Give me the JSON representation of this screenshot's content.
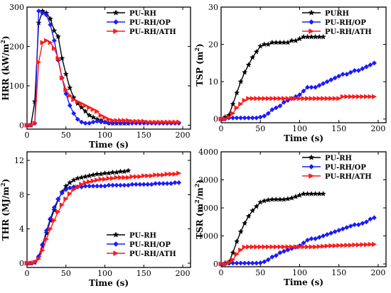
{
  "chart_data": [
    {
      "type": "line",
      "xlabel": "Time (s)",
      "ylabel": "HRR (kW/m²)",
      "ylabel_base": "HRR (kW/m",
      "ylabel_sup": "2",
      "ylabel_tail": ")",
      "xlim": [
        0,
        210
      ],
      "ylim": [
        -10,
        300
      ],
      "xticks": [
        0,
        50,
        100,
        150,
        200
      ],
      "yticks": [
        0,
        100,
        200,
        300
      ],
      "legend_position": "top-right",
      "series": [
        {
          "name": "PU-RH",
          "color": "#000000",
          "marker": "star",
          "x": [
            0,
            5,
            10,
            15,
            20,
            25,
            30,
            35,
            40,
            45,
            50,
            55,
            60,
            65,
            70,
            75,
            80,
            85,
            90,
            95,
            100,
            105,
            110,
            115,
            120,
            125,
            130
          ],
          "y": [
            0,
            0,
            60,
            260,
            290,
            285,
            270,
            240,
            225,
            170,
            130,
            95,
            70,
            55,
            45,
            35,
            25,
            20,
            15,
            12,
            8,
            6,
            5,
            5,
            5,
            5,
            5
          ]
        },
        {
          "name": "PU-RH/OP",
          "color": "#1a1aff",
          "marker": "diamond",
          "x": [
            0,
            5,
            10,
            15,
            20,
            25,
            30,
            35,
            40,
            45,
            50,
            55,
            60,
            65,
            70,
            75,
            80,
            85,
            90,
            95,
            100,
            105,
            110,
            115,
            120,
            125,
            130,
            135,
            140,
            145,
            150,
            155,
            160,
            165,
            170,
            175,
            180,
            185,
            190,
            195
          ],
          "y": [
            0,
            0,
            5,
            290,
            285,
            280,
            255,
            215,
            165,
            120,
            80,
            50,
            30,
            15,
            8,
            5,
            5,
            8,
            10,
            8,
            8,
            5,
            5,
            5,
            5,
            5,
            5,
            5,
            5,
            5,
            5,
            5,
            5,
            5,
            5,
            5,
            5,
            5,
            5,
            5
          ]
        },
        {
          "name": "PU-RH/ATH",
          "color": "#ff1a1a",
          "marker": "triangle-right",
          "x": [
            0,
            5,
            10,
            15,
            20,
            25,
            30,
            35,
            40,
            45,
            50,
            55,
            60,
            65,
            70,
            75,
            80,
            85,
            90,
            95,
            100,
            105,
            110,
            115,
            120,
            125,
            130,
            135,
            140,
            145,
            150,
            155,
            160,
            165,
            170,
            175,
            180,
            185,
            190,
            195
          ],
          "y": [
            0,
            0,
            5,
            160,
            210,
            215,
            210,
            195,
            170,
            120,
            90,
            75,
            65,
            60,
            55,
            50,
            45,
            40,
            35,
            25,
            20,
            15,
            12,
            12,
            12,
            12,
            12,
            10,
            10,
            10,
            10,
            8,
            8,
            8,
            8,
            8,
            8,
            8,
            8,
            8
          ]
        }
      ]
    },
    {
      "type": "line",
      "xlabel": "Time (s)",
      "ylabel": "TSP (m²)",
      "ylabel_base": "TSP (m",
      "ylabel_sup": "2",
      "ylabel_tail": ")",
      "xlim": [
        0,
        210
      ],
      "ylim": [
        -1,
        30
      ],
      "xticks": [
        0,
        50,
        100,
        150,
        200
      ],
      "yticks": [
        0,
        10,
        20,
        30
      ],
      "legend_position": "top-right",
      "series": [
        {
          "name": "PURH",
          "color": "#000000",
          "marker": "star",
          "x": [
            0,
            5,
            10,
            15,
            20,
            25,
            30,
            35,
            40,
            45,
            50,
            55,
            60,
            65,
            70,
            75,
            80,
            85,
            90,
            95,
            100,
            105,
            110,
            115,
            120,
            125,
            130
          ],
          "y": [
            0,
            0.5,
            1,
            4,
            7,
            10,
            12.5,
            14.5,
            16.5,
            18,
            19.5,
            20,
            20,
            20.5,
            20.5,
            20.5,
            20.5,
            20.5,
            21,
            21,
            21.5,
            22,
            22,
            22,
            22,
            22,
            22
          ]
        },
        {
          "name": "PU-RH/OP",
          "color": "#1a1aff",
          "marker": "diamond",
          "x": [
            0,
            5,
            10,
            15,
            20,
            25,
            30,
            35,
            40,
            45,
            50,
            55,
            60,
            65,
            70,
            75,
            80,
            85,
            90,
            95,
            100,
            105,
            110,
            115,
            120,
            125,
            130,
            135,
            140,
            145,
            150,
            155,
            160,
            165,
            170,
            175,
            180,
            185,
            190,
            195
          ],
          "y": [
            0,
            0,
            0.3,
            0.3,
            0.3,
            0.3,
            0.3,
            0.3,
            0.3,
            0.3,
            0.5,
            0.8,
            1.5,
            2.5,
            3,
            3.5,
            4.5,
            5,
            5.5,
            6,
            6.5,
            7.5,
            8.5,
            8.5,
            8.5,
            9,
            9.5,
            10,
            10.5,
            11,
            11.5,
            12,
            12,
            12.5,
            13,
            13,
            13.5,
            14,
            14.5,
            15
          ]
        },
        {
          "name": "PU-RH/ATH",
          "color": "#ff1a1a",
          "marker": "triangle-right",
          "x": [
            0,
            5,
            10,
            15,
            20,
            25,
            30,
            35,
            40,
            45,
            50,
            55,
            60,
            65,
            70,
            75,
            80,
            85,
            90,
            95,
            100,
            105,
            110,
            115,
            120,
            125,
            130,
            135,
            140,
            145,
            150,
            155,
            160,
            165,
            170,
            175,
            180,
            185,
            190,
            195
          ],
          "y": [
            0,
            0,
            0.5,
            1.5,
            3,
            4,
            5,
            5.5,
            5.5,
            5.5,
            5.5,
            5.5,
            5.5,
            5.5,
            5.5,
            5.5,
            5.5,
            5.5,
            5.5,
            5.5,
            5.5,
            5.5,
            5.5,
            5.5,
            5.5,
            5.5,
            5.5,
            5.5,
            5.5,
            5.5,
            5.5,
            6,
            6,
            6,
            6,
            6,
            6,
            6,
            6,
            6
          ]
        }
      ]
    },
    {
      "type": "line",
      "xlabel": "Time (s)",
      "ylabel": "THR (MJ/m²)",
      "ylabel_base": "THR (MJ/m",
      "ylabel_sup": "2",
      "ylabel_tail": ")",
      "xlim": [
        0,
        210
      ],
      "ylim": [
        -0.5,
        13
      ],
      "xticks": [
        0,
        50,
        100,
        150,
        200
      ],
      "yticks": [
        0,
        4,
        8,
        12
      ],
      "legend_position": "bottom-right",
      "series": [
        {
          "name": "PU-RH",
          "color": "#000000",
          "marker": "star",
          "x": [
            0,
            5,
            10,
            15,
            20,
            25,
            30,
            35,
            40,
            45,
            50,
            55,
            60,
            65,
            70,
            75,
            80,
            85,
            90,
            95,
            100,
            105,
            110,
            115,
            120,
            125,
            130
          ],
          "y": [
            0,
            0,
            0.1,
            0.7,
            2,
            3.5,
            5,
            6.2,
            7.4,
            8.3,
            9,
            9.4,
            9.7,
            9.9,
            10,
            10.1,
            10.2,
            10.3,
            10.4,
            10.4,
            10.5,
            10.5,
            10.6,
            10.6,
            10.7,
            10.7,
            10.8
          ]
        },
        {
          "name": "PU-RH/OP",
          "color": "#1a1aff",
          "marker": "diamond",
          "x": [
            0,
            5,
            10,
            15,
            20,
            25,
            30,
            35,
            40,
            45,
            50,
            55,
            60,
            65,
            70,
            75,
            80,
            85,
            90,
            95,
            100,
            105,
            110,
            115,
            120,
            125,
            130,
            135,
            140,
            145,
            150,
            155,
            160,
            165,
            170,
            175,
            180,
            185,
            190,
            195
          ],
          "y": [
            0,
            0,
            0.1,
            0.8,
            2.2,
            3.8,
            5.2,
            6.5,
            7.5,
            8.2,
            8.6,
            8.8,
            8.9,
            8.9,
            8.9,
            9,
            9,
            9,
            9,
            9,
            9,
            9.1,
            9.1,
            9.1,
            9.1,
            9.1,
            9.1,
            9.2,
            9.2,
            9.2,
            9.2,
            9.2,
            9.2,
            9.3,
            9.3,
            9.3,
            9.3,
            9.3,
            9.4,
            9.4
          ]
        },
        {
          "name": "PU-RH/ATH",
          "color": "#ff1a1a",
          "marker": "triangle-right",
          "x": [
            0,
            5,
            10,
            15,
            20,
            25,
            30,
            35,
            40,
            45,
            50,
            55,
            60,
            65,
            70,
            75,
            80,
            85,
            90,
            95,
            100,
            105,
            110,
            115,
            120,
            125,
            130,
            135,
            140,
            145,
            150,
            155,
            160,
            165,
            170,
            175,
            180,
            185,
            190,
            195
          ],
          "y": [
            0,
            0,
            0.1,
            0.5,
            1.5,
            2.8,
            4,
            5,
            6,
            6.8,
            7.5,
            8.1,
            8.6,
            8.9,
            9.2,
            9.4,
            9.5,
            9.6,
            9.7,
            9.8,
            9.8,
            9.9,
            9.9,
            10,
            10,
            10,
            10,
            10.1,
            10.1,
            10.1,
            10.2,
            10.2,
            10.2,
            10.3,
            10.3,
            10.3,
            10.4,
            10.4,
            10.4,
            10.5
          ]
        }
      ]
    },
    {
      "type": "line",
      "xlabel": "Time (s)",
      "ylabel": "TSR (m²/m²)",
      "ylabel_base": "TSR (m",
      "ylabel_sup": "2",
      "ylabel_mid": "/m",
      "ylabel_sup2": "2",
      "ylabel_tail": ")",
      "xlim": [
        0,
        210
      ],
      "ylim": [
        -100,
        4000
      ],
      "xticks": [
        0,
        50,
        100,
        150,
        200
      ],
      "yticks": [
        0,
        1000,
        2000,
        3000,
        4000
      ],
      "legend_position": "top-right",
      "series": [
        {
          "name": "PU-RH",
          "color": "#000000",
          "marker": "star",
          "x": [
            0,
            5,
            10,
            15,
            20,
            25,
            30,
            35,
            40,
            45,
            50,
            55,
            60,
            65,
            70,
            75,
            80,
            85,
            90,
            95,
            100,
            105,
            110,
            115,
            120,
            125,
            130
          ],
          "y": [
            0,
            30,
            60,
            400,
            800,
            1150,
            1450,
            1700,
            1900,
            2050,
            2200,
            2250,
            2280,
            2300,
            2300,
            2300,
            2300,
            2320,
            2350,
            2400,
            2450,
            2500,
            2500,
            2500,
            2500,
            2500,
            2500
          ]
        },
        {
          "name": "PU-RH/OP",
          "color": "#1a1aff",
          "marker": "diamond",
          "x": [
            0,
            5,
            10,
            15,
            20,
            25,
            30,
            35,
            40,
            45,
            50,
            55,
            60,
            65,
            70,
            75,
            80,
            85,
            90,
            95,
            100,
            105,
            110,
            115,
            120,
            125,
            130,
            135,
            140,
            145,
            150,
            155,
            160,
            165,
            170,
            175,
            180,
            185,
            190,
            195
          ],
          "y": [
            0,
            0,
            20,
            30,
            30,
            30,
            30,
            30,
            30,
            30,
            40,
            80,
            150,
            250,
            300,
            400,
            450,
            500,
            550,
            600,
            650,
            750,
            850,
            900,
            900,
            950,
            1000,
            1050,
            1100,
            1150,
            1200,
            1250,
            1300,
            1350,
            1400,
            1400,
            1450,
            1500,
            1600,
            1650
          ]
        },
        {
          "name": "PU-RH/ATH",
          "color": "#ff1a1a",
          "marker": "triangle-right",
          "x": [
            0,
            5,
            10,
            15,
            20,
            25,
            30,
            35,
            40,
            45,
            50,
            55,
            60,
            65,
            70,
            75,
            80,
            85,
            90,
            95,
            100,
            105,
            110,
            115,
            120,
            125,
            130,
            135,
            140,
            145,
            150,
            155,
            160,
            165,
            170,
            175,
            180,
            185,
            190,
            195
          ],
          "y": [
            0,
            0,
            50,
            150,
            350,
            500,
            600,
            610,
            610,
            610,
            610,
            610,
            610,
            610,
            610,
            610,
            610,
            610,
            610,
            610,
            610,
            610,
            610,
            610,
            610,
            620,
            630,
            640,
            650,
            650,
            660,
            660,
            670,
            670,
            680,
            680,
            690,
            690,
            700,
            700
          ]
        }
      ]
    }
  ]
}
